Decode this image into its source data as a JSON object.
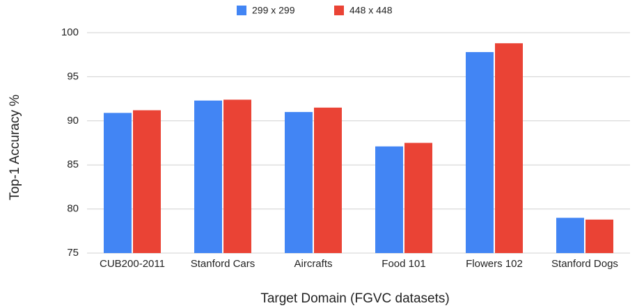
{
  "chart_data": {
    "type": "bar",
    "x_label": "Target Domain (FGVC datasets)",
    "y_label": "Top-1 Accuracy %",
    "categories": [
      "CUB200-2011",
      "Stanford Cars",
      "Aircrafts",
      "Food 101",
      "Flowers 102",
      "Stanford Dogs"
    ],
    "series": [
      {
        "name": "299 x 299",
        "color": "#4285f4",
        "values": [
          90.9,
          92.3,
          91.0,
          87.1,
          97.8,
          79.0
        ]
      },
      {
        "name": "448 x 448",
        "color": "#ea4335",
        "values": [
          91.2,
          92.4,
          91.5,
          87.5,
          98.8,
          78.8
        ]
      }
    ],
    "ylim": [
      75,
      100
    ],
    "yticks": [
      75,
      80,
      85,
      90,
      95,
      100
    ],
    "grid": true,
    "legend": "top"
  }
}
